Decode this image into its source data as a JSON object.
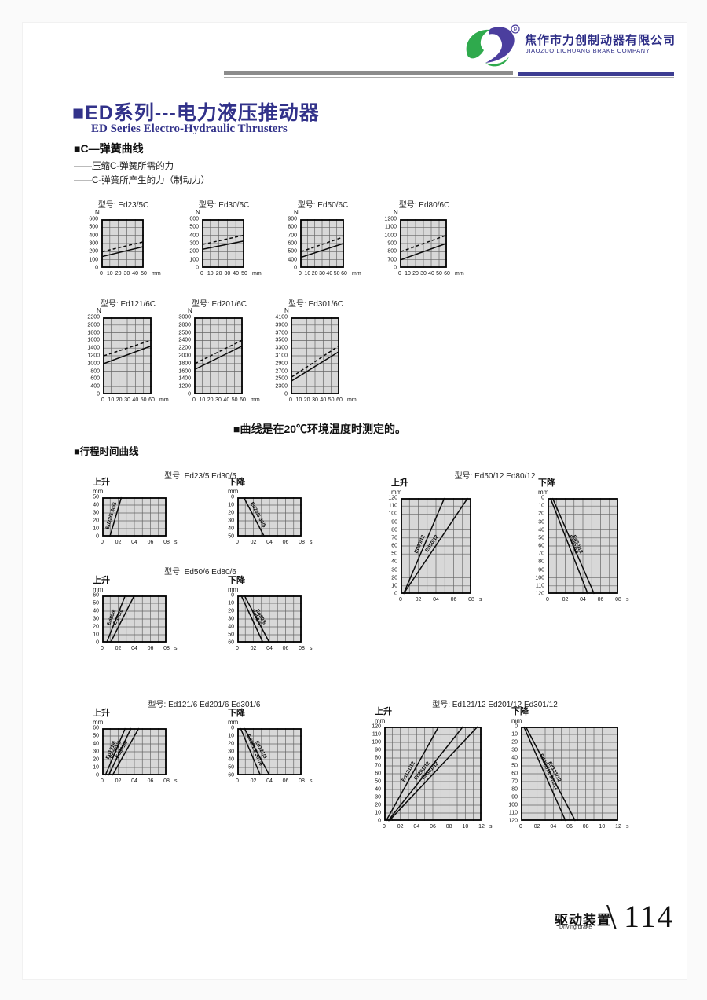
{
  "header": {
    "company_cn": "焦作市力创制动器有限公司",
    "company_en": "JIAOZUO LICHUANG BRAKE COMPANY",
    "registered_mark": "®"
  },
  "intro": {
    "title_cn": "■ED系列---电力液压推动器",
    "title_en": "ED Series Electro-Hydraulic Thrusters",
    "section_spring": "■C—弹簧曲线",
    "legend_required": "——压缩C-弹簧所需的力",
    "legend_produced": "——C-弹簧所产生的力（制动力）"
  },
  "note_20c": "■曲线是在20℃环境温度时测定的。",
  "section_stroke": "■行程时间曲线",
  "stroke_group_titles": [
    "型号: Ed23/5  Ed30/5",
    "型号: Ed50/6  Ed80/6",
    "型号: Ed50/12  Ed80/12",
    "型号: Ed121/6  Ed201/6  Ed301/6",
    "型号: Ed121/12  Ed201/12  Ed301/12"
  ],
  "footer": {
    "label_cn": "驱动装置",
    "label_en": "Driving brake",
    "slash": "\\",
    "page_no": "114"
  },
  "colors": {
    "brand_navy": "#2e2e87",
    "brand_purple_bar": "#3d3d92",
    "brand_green": "#2faa4d",
    "logo_purple": "#4b3e9e",
    "grid_bg": "#d8d8d8"
  },
  "chart_data": [
    {
      "type": "line",
      "kind": "spring",
      "title": "型号: Ed23/5C",
      "y_unit": "N",
      "x_unit": "mm",
      "y_ticks": [
        "600",
        "500",
        "400",
        "300",
        "200",
        "100",
        "0"
      ],
      "x_ticks": [
        "0",
        "10",
        "20",
        "30",
        "40",
        "50"
      ],
      "x_subdiv": 1,
      "series": [
        {
          "name": "压缩C-弹簧所需的力",
          "dash": true,
          "x_range_mm": [
            0,
            50
          ],
          "force_N": [
            200,
            320
          ],
          "x1": 0.02,
          "y1": 0.667,
          "x2": 0.98,
          "y2": 0.467
        },
        {
          "name": "C-弹簧所产生的力(制动力)",
          "dash": false,
          "x_range_mm": [
            0,
            50
          ],
          "force_N": [
            140,
            260
          ],
          "x1": 0.02,
          "y1": 0.767,
          "x2": 0.98,
          "y2": 0.567
        }
      ]
    },
    {
      "type": "line",
      "kind": "spring",
      "title": "型号: Ed30/5C",
      "y_unit": "N",
      "x_unit": "mm",
      "y_ticks": [
        "600",
        "500",
        "400",
        "300",
        "200",
        "100",
        "0"
      ],
      "x_ticks": [
        "0",
        "10",
        "20",
        "30",
        "40",
        "50"
      ],
      "x_subdiv": 1,
      "series": [
        {
          "name": "压缩C-弹簧所需的力",
          "dash": true,
          "x_range_mm": [
            0,
            50
          ],
          "force_N": [
            290,
            400
          ],
          "x1": 0.02,
          "y1": 0.517,
          "x2": 0.98,
          "y2": 0.333
        },
        {
          "name": "C-弹簧所产生的力(制动力)",
          "dash": false,
          "x_range_mm": [
            0,
            50
          ],
          "force_N": [
            230,
            330
          ],
          "x1": 0.02,
          "y1": 0.617,
          "x2": 0.98,
          "y2": 0.45
        }
      ]
    },
    {
      "type": "line",
      "kind": "spring",
      "title": "型号: Ed50/6C",
      "y_unit": "N",
      "x_unit": "mm",
      "y_ticks": [
        "900",
        "800",
        "700",
        "600",
        "500",
        "400",
        "0"
      ],
      "x_ticks": [
        "0",
        "10",
        "20",
        "30",
        "40",
        "50",
        "60"
      ],
      "x_subdiv": 1,
      "series": [
        {
          "name": "压缩C-弹簧所需的力",
          "dash": true,
          "x_range_mm": [
            0,
            60
          ],
          "force_N": [
            500,
            680
          ],
          "x1": 0.02,
          "y1": 0.667,
          "x2": 0.98,
          "y2": 0.367
        },
        {
          "name": "C-弹簧所产生的力(制动力)",
          "dash": false,
          "x_range_mm": [
            0,
            60
          ],
          "force_N": [
            430,
            600
          ],
          "x1": 0.02,
          "y1": 0.783,
          "x2": 0.98,
          "y2": 0.5
        }
      ]
    },
    {
      "type": "line",
      "kind": "spring",
      "title": "型号: Ed80/6C",
      "y_unit": "N",
      "x_unit": "mm",
      "y_ticks": [
        "1200",
        "1100",
        "1000",
        "900",
        "800",
        "700",
        "0"
      ],
      "x_ticks": [
        "0",
        "10",
        "20",
        "30",
        "40",
        "50",
        "60"
      ],
      "x_subdiv": 1,
      "series": [
        {
          "name": "压缩C-弹簧所需的力",
          "dash": true,
          "x_range_mm": [
            0,
            60
          ],
          "force_N": [
            800,
            1000
          ],
          "x1": 0.02,
          "y1": 0.667,
          "x2": 0.98,
          "y2": 0.333
        },
        {
          "name": "C-弹簧所产生的力(制动力)",
          "dash": false,
          "x_range_mm": [
            0,
            60
          ],
          "force_N": [
            700,
            900
          ],
          "x1": 0.02,
          "y1": 0.833,
          "x2": 0.98,
          "y2": 0.5
        }
      ]
    },
    {
      "type": "line",
      "kind": "spring",
      "title": "型号: Ed121/6C",
      "y_unit": "N",
      "x_unit": "mm",
      "y_ticks": [
        "2200",
        "2000",
        "1800",
        "1600",
        "1400",
        "1200",
        "1000",
        "800",
        "600",
        "400",
        "0"
      ],
      "x_ticks": [
        "0",
        "10",
        "20",
        "30",
        "40",
        "50",
        "60"
      ],
      "x_subdiv": 1,
      "series": [
        {
          "name": "压缩C-弹簧所需的力",
          "dash": true,
          "x_range_mm": [
            0,
            60
          ],
          "force_N": [
            1200,
            1600
          ],
          "x1": 0.02,
          "y1": 0.5,
          "x2": 0.98,
          "y2": 0.3
        },
        {
          "name": "C-弹簧所产生的力(制动力)",
          "dash": false,
          "x_range_mm": [
            0,
            60
          ],
          "force_N": [
            1000,
            1450
          ],
          "x1": 0.02,
          "y1": 0.6,
          "x2": 0.98,
          "y2": 0.375
        }
      ]
    },
    {
      "type": "line",
      "kind": "spring",
      "title": "型号: Ed201/6C",
      "y_unit": "N",
      "x_unit": "mm",
      "y_ticks": [
        "3000",
        "2800",
        "2500",
        "2400",
        "2200",
        "2000",
        "1800",
        "1600",
        "1400",
        "1200",
        "0"
      ],
      "x_ticks": [
        "0",
        "10",
        "20",
        "30",
        "40",
        "50",
        "60"
      ],
      "x_subdiv": 1,
      "series": [
        {
          "name": "压缩C-弹簧所需的力",
          "dash": true,
          "x_range_mm": [
            0,
            60
          ],
          "force_N": [
            1800,
            2400
          ],
          "x1": 0.02,
          "y1": 0.6,
          "x2": 0.98,
          "y2": 0.3
        },
        {
          "name": "C-弹簧所产生的力(制动力)",
          "dash": false,
          "x_range_mm": [
            0,
            60
          ],
          "force_N": [
            1650,
            2250
          ],
          "x1": 0.02,
          "y1": 0.675,
          "x2": 0.98,
          "y2": 0.375
        }
      ]
    },
    {
      "type": "line",
      "kind": "spring",
      "title": "型号: Ed301/6C",
      "y_unit": "N",
      "x_unit": "mm",
      "y_ticks": [
        "4100",
        "3900",
        "3700",
        "3500",
        "3300",
        "3100",
        "2900",
        "2700",
        "2500",
        "2300",
        "0"
      ],
      "x_ticks": [
        "0",
        "10",
        "20",
        "30",
        "40",
        "50",
        "60"
      ],
      "x_subdiv": 1,
      "series": [
        {
          "name": "压缩C-弹簧所需的力",
          "dash": true,
          "x_range_mm": [
            0,
            60
          ],
          "force_N": [
            2550,
            3350
          ],
          "x1": 0.02,
          "y1": 0.775,
          "x2": 0.98,
          "y2": 0.375
        },
        {
          "name": "C-弹簧所产生的力(制动力)",
          "dash": false,
          "x_range_mm": [
            0,
            60
          ],
          "force_N": [
            2450,
            3200
          ],
          "x1": 0.02,
          "y1": 0.825,
          "x2": 0.98,
          "y2": 0.45
        }
      ]
    },
    {
      "type": "line",
      "kind": "stroke",
      "group": "Ed23/5 Ed30/5",
      "dir": "上升",
      "y_unit": "mm",
      "x_unit": "s",
      "y_ticks": [
        "50",
        "40",
        "30",
        "20",
        "10",
        "0"
      ],
      "x_ticks": [
        "0",
        "02",
        "04",
        "06",
        "08"
      ],
      "x_subdiv": 2,
      "series": [
        {
          "label": "Ed23/5 30/5",
          "dash": false,
          "stroke_mm": 50,
          "t_full_axis": 2.4,
          "x1": 0.12,
          "y1": 1,
          "x2": 0.3,
          "y2": 0
        }
      ]
    },
    {
      "type": "line",
      "kind": "stroke",
      "group": "Ed23/5 Ed30/5",
      "dir": "下降",
      "y_unit": "mm",
      "x_unit": "s",
      "y_ticks": [
        "0",
        "10",
        "20",
        "30",
        "40",
        "50"
      ],
      "x_ticks": [
        "0",
        "02",
        "04",
        "06",
        "08"
      ],
      "x_subdiv": 2,
      "series": [
        {
          "label": "Ed23/5 30/5",
          "dash": false,
          "stroke_mm": 50,
          "t_full_axis": 3.4,
          "x1": 0.1,
          "y1": 0,
          "x2": 0.42,
          "y2": 1
        }
      ]
    },
    {
      "type": "line",
      "kind": "stroke",
      "group": "Ed50/6 Ed80/6",
      "dir": "上升",
      "y_unit": "mm",
      "x_unit": "s",
      "y_ticks": [
        "60",
        "50",
        "40",
        "30",
        "20",
        "10",
        "0"
      ],
      "x_ticks": [
        "0",
        "02",
        "04",
        "06",
        "08"
      ],
      "x_subdiv": 2,
      "series": [
        {
          "label": "Ed80/6",
          "dash": false,
          "stroke_mm": 60,
          "t_full_axis": 2.9,
          "x1": 0.07,
          "y1": 1,
          "x2": 0.36,
          "y2": 0
        },
        {
          "label": "Ed50/6",
          "dash": false,
          "stroke_mm": 60,
          "t_full_axis": 4.0,
          "x1": 0.13,
          "y1": 1,
          "x2": 0.5,
          "y2": 0
        }
      ]
    },
    {
      "type": "line",
      "kind": "stroke",
      "group": "Ed50/6 Ed80/6",
      "dir": "下降",
      "y_unit": "mm",
      "x_unit": "s",
      "y_ticks": [
        "0",
        "10",
        "20",
        "30",
        "40",
        "50",
        "60"
      ],
      "x_ticks": [
        "0",
        "02",
        "04",
        "06",
        "08"
      ],
      "x_subdiv": 2,
      "series": [
        {
          "label": "Ed50/6",
          "dash": false,
          "stroke_mm": 60,
          "t_full_axis": 3.2,
          "x1": 0.06,
          "y1": 0,
          "x2": 0.4,
          "y2": 1
        },
        {
          "label": "Ed80/6",
          "dash": false,
          "stroke_mm": 60,
          "t_full_axis": 4.0,
          "x1": 0.11,
          "y1": 0,
          "x2": 0.5,
          "y2": 1
        }
      ]
    },
    {
      "type": "line",
      "kind": "stroke",
      "group": "Ed50/12 Ed80/12",
      "dir": "上升",
      "y_unit": "mm",
      "x_unit": "s",
      "y_ticks": [
        "120",
        "110",
        "100",
        "90",
        "80",
        "70",
        "60",
        "50",
        "40",
        "30",
        "20",
        "10",
        "0"
      ],
      "x_ticks": [
        "0",
        "02",
        "04",
        "06",
        "08"
      ],
      "x_subdiv": 2,
      "series": [
        {
          "label": "Ed80/12",
          "dash": false,
          "stroke_mm": 120,
          "t_full_axis": 5.0,
          "x1": 0.04,
          "y1": 1,
          "x2": 0.62,
          "y2": 0
        },
        {
          "label": "Ed50/12",
          "dash": false,
          "stroke_mm": 120,
          "t_full_axis": 7.6,
          "x1": 0.04,
          "y1": 1,
          "x2": 0.95,
          "y2": 0
        }
      ]
    },
    {
      "type": "line",
      "kind": "stroke",
      "group": "Ed50/12 Ed80/12",
      "dir": "下降",
      "y_unit": "mm",
      "x_unit": "s",
      "y_ticks": [
        "0",
        "10",
        "20",
        "30",
        "40",
        "50",
        "60",
        "70",
        "80",
        "90",
        "100",
        "110",
        "120"
      ],
      "x_ticks": [
        "0",
        "02",
        "04",
        "06",
        "08"
      ],
      "x_subdiv": 2,
      "series": [
        {
          "label": "Ed80/12",
          "dash": false,
          "stroke_mm": 120,
          "t_full_axis": 4.6,
          "x1": 0.04,
          "y1": 0,
          "x2": 0.57,
          "y2": 1
        },
        {
          "label": "Ed50/12",
          "dash": false,
          "stroke_mm": 120,
          "t_full_axis": 5.3,
          "x1": 0.07,
          "y1": 0,
          "x2": 0.66,
          "y2": 1
        }
      ]
    },
    {
      "type": "line",
      "kind": "stroke",
      "group": "Ed121/6 Ed201/6 Ed301/6",
      "dir": "上升",
      "y_unit": "mm",
      "x_unit": "s",
      "y_ticks": [
        "60",
        "50",
        "40",
        "30",
        "20",
        "10",
        "0"
      ],
      "x_ticks": [
        "0",
        "02",
        "04",
        "06",
        "08"
      ],
      "x_subdiv": 2,
      "series": [
        {
          "label": "Ed121/6",
          "dash": false,
          "stroke_mm": 60,
          "t_full_axis": 2.9,
          "x1": 0.05,
          "y1": 1,
          "x2": 0.36,
          "y2": 0
        },
        {
          "label": "Ed201/6",
          "dash": false,
          "stroke_mm": 60,
          "t_full_axis": 3.6,
          "x1": 0.1,
          "y1": 1,
          "x2": 0.45,
          "y2": 0
        },
        {
          "label": "Ed301/6",
          "dash": false,
          "stroke_mm": 60,
          "t_full_axis": 4.6,
          "x1": 0.16,
          "y1": 1,
          "x2": 0.57,
          "y2": 0
        }
      ]
    },
    {
      "type": "line",
      "kind": "stroke",
      "group": "Ed121/6 Ed201/6 Ed301/6",
      "dir": "下降",
      "y_unit": "mm",
      "x_unit": "s",
      "y_ticks": [
        "0",
        "10",
        "20",
        "30",
        "40",
        "50",
        "60"
      ],
      "x_ticks": [
        "0",
        "02",
        "04",
        "06",
        "08"
      ],
      "x_subdiv": 2,
      "series": [
        {
          "label": "Ed201/6 301/6",
          "dash": false,
          "stroke_mm": 60,
          "t_full_axis": 2.9,
          "x1": 0.05,
          "y1": 0,
          "x2": 0.36,
          "y2": 1
        },
        {
          "label": "Ed121/6",
          "dash": false,
          "stroke_mm": 60,
          "t_full_axis": 4.0,
          "x1": 0.11,
          "y1": 0,
          "x2": 0.5,
          "y2": 1
        }
      ]
    },
    {
      "type": "line",
      "kind": "stroke",
      "group": "Ed121/12 Ed201/12 Ed301/12",
      "dir": "上升",
      "y_unit": "mm",
      "x_unit": "s",
      "y_ticks": [
        "120",
        "110",
        "100",
        "90",
        "80",
        "70",
        "60",
        "50",
        "40",
        "30",
        "20",
        "10",
        "0"
      ],
      "x_ticks": [
        "0",
        "02",
        "04",
        "06",
        "08",
        "10",
        "12"
      ],
      "x_subdiv": 2,
      "series": [
        {
          "label": "Ed121/12",
          "dash": false,
          "stroke_mm": 120,
          "t_full_axis": 6.7,
          "x1": 0.02,
          "y1": 1,
          "x2": 0.56,
          "y2": 0
        },
        {
          "label": "Ed201/12",
          "dash": false,
          "stroke_mm": 120,
          "t_full_axis": 9.7,
          "x1": 0.04,
          "y1": 1,
          "x2": 0.81,
          "y2": 0
        },
        {
          "label": "Ed301/12",
          "dash": false,
          "stroke_mm": 120,
          "t_full_axis": 11.5,
          "x1": 0.05,
          "y1": 1,
          "x2": 0.96,
          "y2": 0
        }
      ]
    },
    {
      "type": "line",
      "kind": "stroke",
      "group": "Ed121/12 Ed201/12 Ed301/12",
      "dir": "下降",
      "y_unit": "mm",
      "x_unit": "s",
      "y_ticks": [
        "0",
        "10",
        "20",
        "30",
        "40",
        "50",
        "60",
        "70",
        "80",
        "90",
        "100",
        "110",
        "120"
      ],
      "x_ticks": [
        "0",
        "02",
        "04",
        "06",
        "08",
        "10",
        "12"
      ],
      "x_subdiv": 2,
      "series": [
        {
          "label": "Ed201/12 301/12",
          "dash": false,
          "stroke_mm": 120,
          "t_full_axis": 5.5,
          "x1": 0.03,
          "y1": 0,
          "x2": 0.46,
          "y2": 1
        },
        {
          "label": "Ed121/12",
          "dash": false,
          "stroke_mm": 120,
          "t_full_axis": 6.7,
          "x1": 0.05,
          "y1": 0,
          "x2": 0.56,
          "y2": 1
        }
      ]
    }
  ]
}
